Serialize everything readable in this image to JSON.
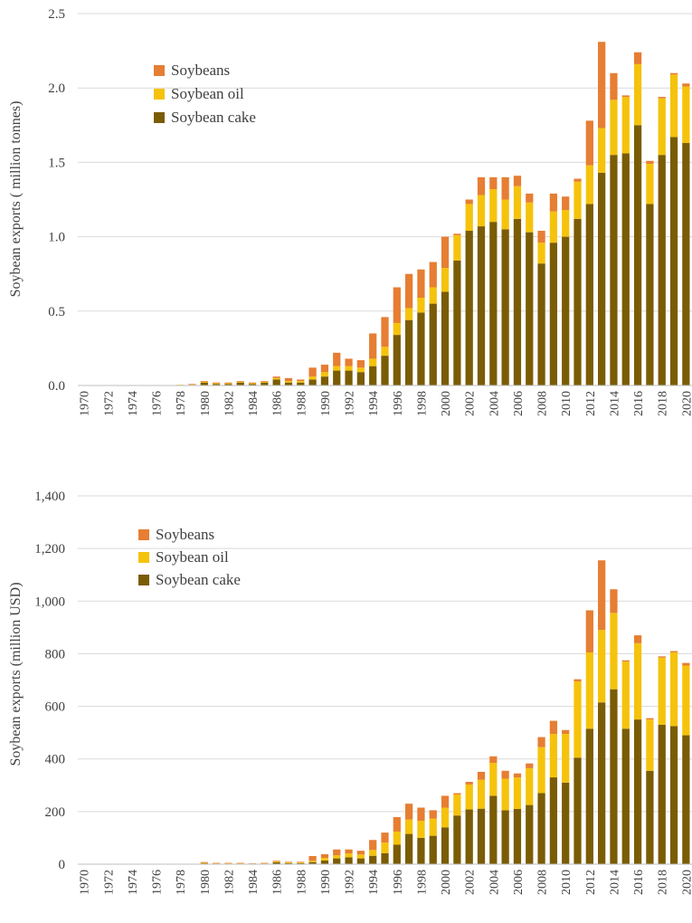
{
  "colors": {
    "soybeans": "#E67E33",
    "soybean_oil": "#F5C30C",
    "soybean_cake": "#7A5C05",
    "grid": "#D9D9D9",
    "text": "#404040"
  },
  "chart_data": [
    {
      "type": "bar",
      "stacked": true,
      "title": "",
      "xlabel": "",
      "ylabel": "Soybean exports ( million tonnes)",
      "ylim": [
        0,
        2.5
      ],
      "yticks": [
        0.0,
        0.5,
        1.0,
        1.5,
        2.0,
        2.5
      ],
      "ytick_labels": [
        "0.0",
        "0.5",
        "1.0",
        "1.5",
        "2.0",
        "2.5"
      ],
      "grid": true,
      "legend_position": "top-left",
      "categories": [
        "1970",
        "1971",
        "1972",
        "1973",
        "1974",
        "1975",
        "1976",
        "1977",
        "1978",
        "1979",
        "1980",
        "1981",
        "1982",
        "1983",
        "1984",
        "1985",
        "1986",
        "1987",
        "1988",
        "1989",
        "1990",
        "1991",
        "1992",
        "1993",
        "1994",
        "1995",
        "1996",
        "1997",
        "1998",
        "1999",
        "2000",
        "2001",
        "2002",
        "2003",
        "2004",
        "2005",
        "2006",
        "2007",
        "2008",
        "2009",
        "2010",
        "2011",
        "2012",
        "2013",
        "2014",
        "2015",
        "2016",
        "2017",
        "2018",
        "2019",
        "2020"
      ],
      "xtick_labels": [
        "1970",
        "",
        "1972",
        "",
        "1974",
        "",
        "1976",
        "",
        "1978",
        "",
        "1980",
        "",
        "1982",
        "",
        "1984",
        "",
        "1986",
        "",
        "1988",
        "",
        "1990",
        "",
        "1992",
        "",
        "1994",
        "",
        "1996",
        "",
        "1998",
        "",
        "2000",
        "",
        "2002",
        "",
        "2004",
        "",
        "2006",
        "",
        "2008",
        "",
        "2010",
        "",
        "2012",
        "",
        "2014",
        "",
        "2016",
        "",
        "2018",
        "",
        "2020"
      ],
      "series": [
        {
          "name": "Soybean cake",
          "color_key": "soybean_cake",
          "values": [
            0,
            0,
            0,
            0,
            0,
            0,
            0,
            0,
            0,
            0,
            0.02,
            0.01,
            0.01,
            0.02,
            0.01,
            0.02,
            0.04,
            0.02,
            0.02,
            0.04,
            0.06,
            0.1,
            0.1,
            0.09,
            0.13,
            0.2,
            0.34,
            0.44,
            0.49,
            0.55,
            0.63,
            0.84,
            1.04,
            1.07,
            1.1,
            1.05,
            1.12,
            1.03,
            0.82,
            0.96,
            1.0,
            1.12,
            1.22,
            1.43,
            1.55,
            1.56,
            1.75,
            1.22,
            1.55,
            1.67,
            1.63
          ]
        },
        {
          "name": "Soybean oil",
          "color_key": "soybean_oil",
          "values": [
            0,
            0,
            0,
            0,
            0,
            0,
            0,
            0,
            0.005,
            0.005,
            0.005,
            0.005,
            0.005,
            0.005,
            0.005,
            0.005,
            0.01,
            0.01,
            0.01,
            0.02,
            0.03,
            0.03,
            0.03,
            0.03,
            0.05,
            0.06,
            0.08,
            0.08,
            0.1,
            0.11,
            0.16,
            0.17,
            0.18,
            0.21,
            0.22,
            0.2,
            0.22,
            0.2,
            0.14,
            0.21,
            0.18,
            0.25,
            0.26,
            0.3,
            0.37,
            0.38,
            0.41,
            0.27,
            0.38,
            0.42,
            0.38
          ]
        },
        {
          "name": "Soybeans",
          "color_key": "soybeans",
          "values": [
            0,
            0,
            0,
            0,
            0,
            0,
            0,
            0,
            0,
            0.005,
            0.005,
            0.005,
            0.005,
            0.005,
            0.005,
            0.005,
            0.01,
            0.02,
            0.01,
            0.06,
            0.05,
            0.09,
            0.05,
            0.05,
            0.17,
            0.2,
            0.24,
            0.23,
            0.19,
            0.17,
            0.21,
            0.01,
            0.03,
            0.12,
            0.08,
            0.15,
            0.07,
            0.06,
            0.08,
            0.12,
            0.09,
            0.02,
            0.3,
            0.58,
            0.18,
            0.01,
            0.08,
            0.02,
            0.01,
            0.01,
            0.02
          ]
        }
      ]
    },
    {
      "type": "bar",
      "stacked": true,
      "title": "",
      "xlabel": "",
      "ylabel": "Soybean exports (million  USD)",
      "ylim": [
        0,
        1400
      ],
      "yticks": [
        0,
        200,
        400,
        600,
        800,
        1000,
        1200,
        1400
      ],
      "ytick_labels": [
        "0",
        "200",
        "400",
        "600",
        "800",
        "1,000",
        "1,200",
        "1,400"
      ],
      "grid": true,
      "legend_position": "top-left",
      "categories": [
        "1970",
        "1971",
        "1972",
        "1973",
        "1974",
        "1975",
        "1976",
        "1977",
        "1978",
        "1979",
        "1980",
        "1981",
        "1982",
        "1983",
        "1984",
        "1985",
        "1986",
        "1987",
        "1988",
        "1989",
        "1990",
        "1991",
        "1992",
        "1993",
        "1994",
        "1995",
        "1996",
        "1997",
        "1998",
        "1999",
        "2000",
        "2001",
        "2002",
        "2003",
        "2004",
        "2005",
        "2006",
        "2007",
        "2008",
        "2009",
        "2010",
        "2011",
        "2012",
        "2013",
        "2014",
        "2015",
        "2016",
        "2017",
        "2018",
        "2019",
        "2020"
      ],
      "xtick_labels": [
        "1970",
        "",
        "1972",
        "",
        "1974",
        "",
        "1976",
        "",
        "1978",
        "",
        "1980",
        "",
        "1982",
        "",
        "1984",
        "",
        "1986",
        "",
        "1988",
        "",
        "1990",
        "",
        "1992",
        "",
        "1994",
        "",
        "1996",
        "",
        "1998",
        "",
        "2000",
        "",
        "2002",
        "",
        "2004",
        "",
        "2006",
        "",
        "2008",
        "",
        "2010",
        "",
        "2012",
        "",
        "2014",
        "",
        "2016",
        "",
        "2018",
        "",
        "2020"
      ],
      "series": [
        {
          "name": "Soybean cake",
          "color_key": "soybean_cake",
          "values": [
            0,
            0,
            0,
            0,
            0,
            0,
            0,
            0,
            0,
            0,
            3,
            2,
            2,
            2,
            1,
            2,
            7,
            4,
            4,
            8,
            14,
            22,
            26,
            22,
            32,
            42,
            74,
            115,
            100,
            108,
            140,
            185,
            208,
            211,
            260,
            205,
            210,
            225,
            270,
            330,
            310,
            405,
            515,
            615,
            665,
            515,
            550,
            355,
            530,
            525,
            490
          ]
        },
        {
          "name": "Soybean oil",
          "color_key": "soybean_oil",
          "values": [
            0,
            0,
            0,
            0,
            0,
            0,
            0,
            0,
            0,
            0,
            2,
            1,
            1,
            1,
            1,
            1,
            3,
            3,
            3,
            5,
            10,
            12,
            15,
            15,
            22,
            40,
            50,
            55,
            65,
            65,
            75,
            80,
            95,
            110,
            125,
            120,
            120,
            140,
            175,
            165,
            185,
            290,
            290,
            275,
            290,
            255,
            290,
            195,
            255,
            280,
            265
          ]
        },
        {
          "name": "Soybeans",
          "color_key": "soybeans",
          "values": [
            0,
            0,
            0,
            0,
            0,
            0,
            0,
            0,
            0,
            1,
            3,
            2,
            2,
            2,
            1,
            2,
            3,
            2,
            2,
            18,
            14,
            22,
            15,
            14,
            38,
            38,
            55,
            60,
            50,
            32,
            45,
            5,
            10,
            30,
            25,
            30,
            15,
            18,
            38,
            50,
            15,
            8,
            160,
            265,
            90,
            5,
            30,
            5,
            5,
            5,
            10
          ]
        }
      ]
    }
  ]
}
